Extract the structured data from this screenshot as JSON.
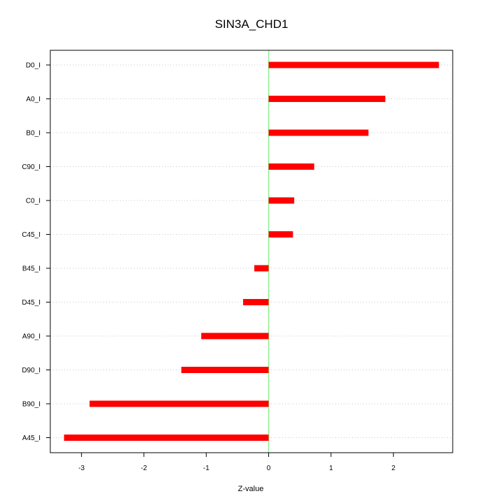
{
  "chart_data": {
    "type": "bar",
    "orientation": "horizontal",
    "title": "SIN3A_CHD1",
    "xlabel": "Z-value",
    "ylabel": "",
    "xlim": [
      -3.5,
      2.95
    ],
    "xticks": [
      -3,
      -2,
      -1,
      0,
      1,
      2
    ],
    "reference_line_x": 0,
    "grid": "horizontal dotted",
    "categories": [
      "D0_I",
      "A0_I",
      "B0_I",
      "C90_I",
      "C0_I",
      "C45_I",
      "B45_I",
      "D45_I",
      "A90_I",
      "D90_I",
      "B90_I",
      "A45_I"
    ],
    "values": [
      2.73,
      1.87,
      1.6,
      0.73,
      0.41,
      0.39,
      -0.23,
      -0.41,
      -1.08,
      -1.4,
      -2.87,
      -3.28
    ],
    "colors": {
      "bar": "#ff0000",
      "reference_line": "#90ee90",
      "grid": "#c8c8c8",
      "axis": "#000000"
    }
  }
}
